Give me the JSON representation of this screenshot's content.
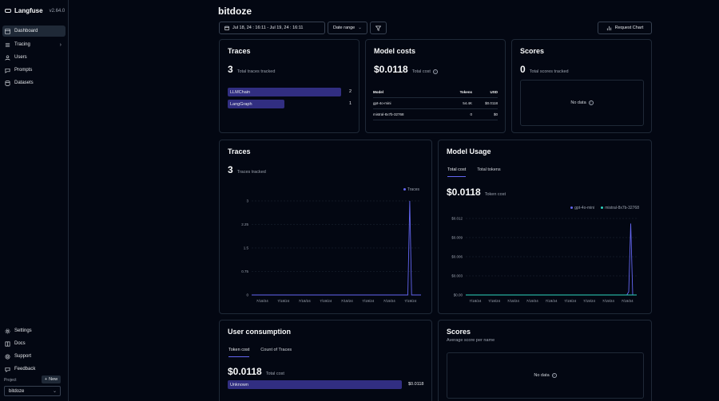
{
  "app": {
    "name": "Langfuse",
    "version": "v2.64.0"
  },
  "sidebar": {
    "items": [
      {
        "label": "Dashboard",
        "icon": "dashboard-icon",
        "active": true
      },
      {
        "label": "Tracing",
        "icon": "tracing-icon",
        "active": false
      },
      {
        "label": "Users",
        "icon": "users-icon",
        "active": false
      },
      {
        "label": "Prompts",
        "icon": "prompts-icon",
        "active": false
      },
      {
        "label": "Datasets",
        "icon": "datasets-icon",
        "active": false
      }
    ],
    "bottom_items": [
      {
        "label": "Settings",
        "icon": "gear-icon"
      },
      {
        "label": "Docs",
        "icon": "book-icon"
      },
      {
        "label": "Support",
        "icon": "support-icon"
      },
      {
        "label": "Feedback",
        "icon": "feedback-icon"
      }
    ],
    "project_label": "Project",
    "new_label": "New",
    "project": "bitdoze"
  },
  "header": {
    "title": "bitdoze",
    "date_range_value": "Jul 18, 24 : 16:11 - Jul 19, 24 : 16:11",
    "date_range_select": "Date range",
    "request_chart": "Request Chart"
  },
  "traces_card": {
    "title": "Traces",
    "count": "3",
    "sub": "Total traces tracked",
    "bars": [
      {
        "label": "LLMChain",
        "value": 2
      },
      {
        "label": "LangGraph",
        "value": 1
      }
    ]
  },
  "model_costs": {
    "title": "Model costs",
    "total": "$0.0118",
    "sub": "Total cost",
    "columns": [
      "Model",
      "Tokens",
      "USD"
    ],
    "rows": [
      [
        "gpt-4o-mini",
        "54.4K",
        "$0.0118"
      ],
      [
        "mistral-8x7b-32768",
        "0",
        "$0"
      ]
    ]
  },
  "scores_top": {
    "title": "Scores",
    "count": "0",
    "sub": "Total scores tracked",
    "no_data": "No data"
  },
  "traces_chart": {
    "title": "Traces",
    "count": "3",
    "sub": "Traces tracked"
  },
  "model_usage": {
    "title": "Model Usage",
    "tabs": [
      "Total cost",
      "Total tokens"
    ],
    "total": "$0.0118",
    "sub": "Token cost"
  },
  "user_consumption": {
    "title": "User consumption",
    "tabs": [
      "Token cost",
      "Count of Traces"
    ],
    "total": "$0.0118",
    "sub": "Total cost",
    "bars": [
      {
        "label": "Unknown",
        "value": "$0.0118"
      }
    ]
  },
  "scores_bottom": {
    "title": "Scores",
    "sub": "Average score per name",
    "no_data": "No data"
  },
  "colors": {
    "accent": "#6366f1",
    "teal": "#2dd4bf",
    "bar": "#312e81",
    "bg": "#030712",
    "border": "#1f2937"
  },
  "chart_data": [
    {
      "type": "line",
      "series": [
        {
          "name": "Traces",
          "values": [
            0,
            0,
            0,
            0,
            0,
            0,
            0,
            0,
            0,
            0,
            0,
            0,
            0,
            0,
            0,
            0,
            0,
            0,
            0,
            0,
            0,
            0,
            0,
            0,
            0,
            0,
            0,
            0,
            0,
            0,
            0,
            0,
            0,
            0,
            0,
            0,
            0,
            0,
            0,
            0,
            0,
            0,
            0,
            0,
            0,
            0,
            0,
            0,
            0,
            0,
            0,
            0,
            0,
            0,
            0,
            0,
            0,
            0,
            0,
            0,
            0,
            0,
            0,
            0,
            0,
            0,
            0,
            0,
            0,
            0,
            0,
            0,
            0,
            0,
            0,
            0,
            0,
            0,
            0,
            0,
            0,
            0,
            0,
            0,
            3,
            0,
            0,
            0,
            0,
            0,
            0
          ]
        }
      ],
      "x_tick_labels": [
        "7/18/24",
        "7/18/24",
        "7/18/24",
        "7/19/24",
        "7/19/24",
        "7/19/24",
        "7/19/24",
        "7/19/24"
      ],
      "y_ticks": [
        "3",
        "2.25",
        "1.5",
        "0.75",
        "0"
      ],
      "ylim": [
        0,
        3
      ],
      "legend": "top-right"
    },
    {
      "type": "line",
      "series": [
        {
          "name": "gpt-4o-mini",
          "values": [
            0,
            0,
            0,
            0,
            0,
            0,
            0,
            0,
            0,
            0,
            0,
            0,
            0,
            0,
            0,
            0,
            0,
            0,
            0,
            0,
            0,
            0,
            0,
            0,
            0,
            0,
            0,
            0,
            0,
            0,
            0,
            0,
            0,
            0,
            0,
            0,
            0,
            0,
            0,
            0,
            0,
            0,
            0,
            0,
            0,
            0,
            0,
            0,
            0,
            0,
            0,
            0,
            0,
            0,
            0,
            0,
            0,
            0,
            0,
            0,
            0,
            0,
            0,
            0,
            0,
            0,
            0,
            0,
            0,
            0,
            0,
            0,
            0,
            0,
            0,
            0,
            0,
            0,
            0,
            0,
            0,
            0,
            0.0005,
            0.0112,
            0,
            0,
            0
          ]
        },
        {
          "name": "mistral-8x7b-32768",
          "values": [
            0,
            0,
            0,
            0,
            0,
            0,
            0,
            0,
            0,
            0,
            0,
            0,
            0,
            0,
            0,
            0,
            0,
            0,
            0,
            0,
            0,
            0,
            0,
            0,
            0,
            0,
            0,
            0,
            0,
            0,
            0,
            0,
            0,
            0,
            0,
            0,
            0,
            0,
            0,
            0,
            0,
            0,
            0,
            0,
            0,
            0,
            0,
            0,
            0,
            0,
            0,
            0,
            0,
            0,
            0,
            0,
            0,
            0,
            0,
            0,
            0,
            0,
            0,
            0,
            0,
            0,
            0,
            0,
            0,
            0,
            0,
            0,
            0,
            0,
            0,
            0,
            0,
            0,
            0,
            0,
            0,
            0,
            0,
            0,
            0,
            0,
            0
          ]
        }
      ],
      "x_tick_labels": [
        "7/18/24",
        "7/18/24",
        "7/18/24",
        "7/19/24",
        "7/19/24",
        "7/19/24",
        "7/19/24",
        "7/19/24",
        "7/19/24"
      ],
      "y_ticks": [
        "$0.012",
        "$0.009",
        "$0.006",
        "$0.003",
        "$0.00"
      ],
      "ylim": [
        0,
        0.012
      ],
      "legend": "top-right"
    }
  ]
}
